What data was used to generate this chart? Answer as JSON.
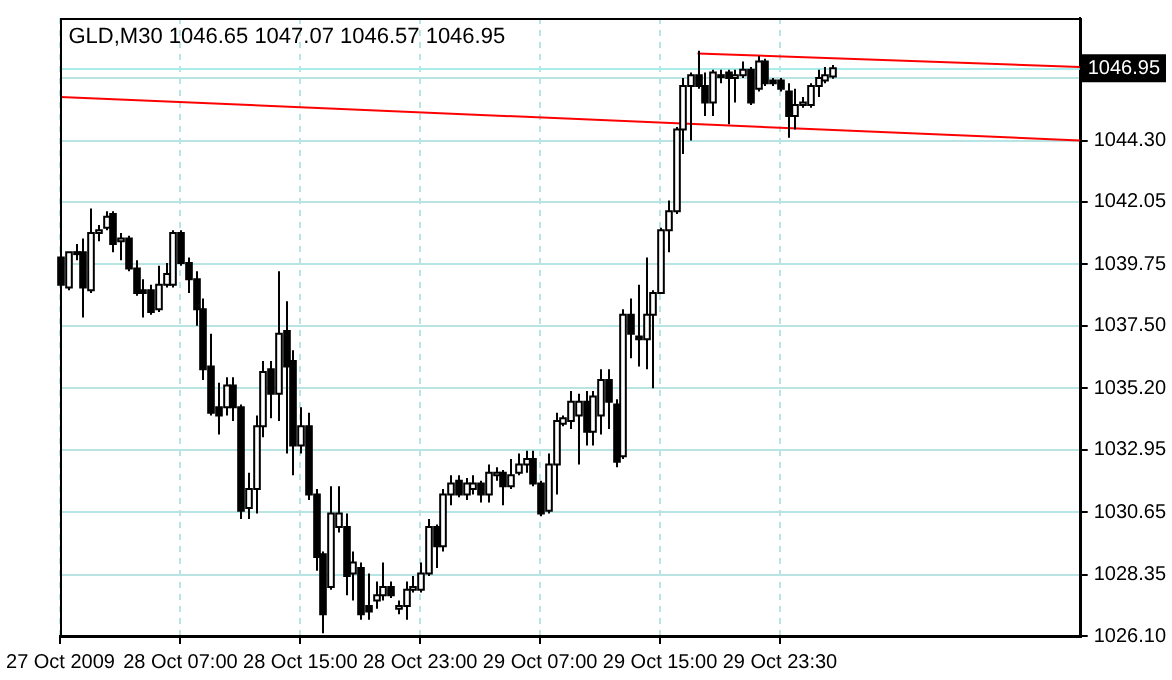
{
  "chart_data": {
    "type": "candlestick",
    "title": "GLD,M30 1046.65 1047.07 1046.57 1046.95",
    "categories": [
      "27 Oct 2009",
      null,
      null,
      null,
      null,
      null,
      null,
      null,
      null,
      null,
      null,
      null,
      null,
      null,
      null,
      null,
      "28 Oct 07:00",
      null,
      null,
      null,
      null,
      null,
      null,
      null,
      null,
      null,
      null,
      null,
      null,
      null,
      null,
      null,
      "28 Oct 15:00",
      null,
      null,
      null,
      null,
      null,
      null,
      null,
      null,
      null,
      null,
      null,
      null,
      null,
      null,
      null,
      "28 Oct 23:00",
      null,
      null,
      null,
      null,
      null,
      null,
      null,
      null,
      null,
      null,
      null,
      null,
      null,
      null,
      null,
      "29 Oct 07:00",
      null,
      null,
      null,
      null,
      null,
      null,
      null,
      null,
      null,
      null,
      null,
      null,
      null,
      null,
      null,
      "29 Oct 15:00",
      null,
      null,
      null,
      null,
      null,
      null,
      null,
      null,
      null,
      null,
      null,
      null,
      null,
      null,
      null,
      "29 Oct 23:30",
      null,
      null,
      null,
      null,
      null,
      null,
      null,
      null,
      null,
      null,
      null,
      null,
      null,
      null,
      null,
      null,
      null,
      null,
      null,
      null,
      null,
      null,
      null,
      null,
      null,
      null,
      null,
      null,
      null,
      null,
      null,
      null,
      null,
      null,
      null,
      null,
      null,
      null,
      null,
      null
    ],
    "ohlc": [
      [
        1040.0,
        1040.0,
        1038.9,
        1039.0
      ],
      [
        1038.9,
        1040.2,
        1038.8,
        1040.2
      ],
      [
        1040.2,
        1040.5,
        1039.9,
        1040.2
      ],
      [
        1040.2,
        1040.7,
        1037.8,
        1038.9
      ],
      [
        1038.8,
        1041.8,
        1038.7,
        1040.9
      ],
      [
        1040.9,
        1041.2,
        1040.6,
        1041.0
      ],
      [
        1041.1,
        1041.7,
        1041.0,
        1041.5
      ],
      [
        1041.6,
        1041.7,
        1040.2,
        1040.5
      ],
      [
        1040.6,
        1040.9,
        1039.9,
        1040.7
      ],
      [
        1040.7,
        1040.8,
        1039.5,
        1039.6
      ],
      [
        1039.6,
        1039.9,
        1038.6,
        1038.7
      ],
      [
        1038.8,
        1039.2,
        1037.8,
        1038.7
      ],
      [
        1038.8,
        1039.0,
        1037.9,
        1038.0
      ],
      [
        1038.1,
        1039.7,
        1038.0,
        1039.0
      ],
      [
        1039.0,
        1039.8,
        1038.9,
        1039.4
      ],
      [
        1039.0,
        1041.0,
        1038.9,
        1040.9
      ],
      [
        1040.9,
        1041.0,
        1039.7,
        1039.8
      ],
      [
        1039.8,
        1040.0,
        1038.7,
        1039.2
      ],
      [
        1039.2,
        1039.5,
        1037.5,
        1038.1
      ],
      [
        1038.1,
        1038.5,
        1035.5,
        1035.9
      ],
      [
        1036.0,
        1037.2,
        1034.2,
        1034.3
      ],
      [
        1034.5,
        1035.4,
        1033.5,
        1034.2
      ],
      [
        1034.5,
        1035.6,
        1034.2,
        1035.3
      ],
      [
        1035.3,
        1035.6,
        1034.0,
        1034.5
      ],
      [
        1034.5,
        1034.6,
        1030.4,
        1030.7
      ],
      [
        1030.8,
        1032.1,
        1030.4,
        1031.5
      ],
      [
        1031.5,
        1034.2,
        1030.6,
        1033.8
      ],
      [
        1033.8,
        1036.2,
        1033.4,
        1035.8
      ],
      [
        1035.9,
        1036.2,
        1034.1,
        1035.0
      ],
      [
        1035.0,
        1039.5,
        1034.0,
        1037.2
      ],
      [
        1037.3,
        1038.4,
        1032.8,
        1036.0
      ],
      [
        1036.2,
        1036.6,
        1032.0,
        1033.1
      ],
      [
        1033.1,
        1034.5,
        1032.8,
        1033.8
      ],
      [
        1033.8,
        1034.3,
        1031.1,
        1031.3
      ],
      [
        1031.3,
        1031.5,
        1028.5,
        1029.0
      ],
      [
        1029.1,
        1029.2,
        1026.2,
        1026.9
      ],
      [
        1027.9,
        1031.6,
        1027.8,
        1030.6
      ],
      [
        1030.1,
        1031.6,
        1029.9,
        1030.6
      ],
      [
        1030.1,
        1030.6,
        1027.6,
        1028.3
      ],
      [
        1028.4,
        1029.2,
        1027.4,
        1028.8
      ],
      [
        1028.6,
        1028.8,
        1026.7,
        1026.9
      ],
      [
        1027.2,
        1028.4,
        1026.7,
        1027.0
      ],
      [
        1027.4,
        1028.1,
        1027.1,
        1027.6
      ],
      [
        1027.6,
        1028.8,
        1027.4,
        1027.9
      ],
      [
        1027.9,
        1028.1,
        1027.5,
        1027.6
      ],
      [
        1027.1,
        1027.4,
        1026.9,
        1027.2
      ],
      [
        1027.2,
        1028.1,
        1026.7,
        1027.8
      ],
      [
        1027.8,
        1028.3,
        1027.7,
        1027.9
      ],
      [
        1027.8,
        1028.8,
        1027.7,
        1028.4
      ],
      [
        1028.4,
        1030.4,
        1028.3,
        1030.1
      ],
      [
        1030.1,
        1030.2,
        1028.6,
        1029.4
      ],
      [
        1029.4,
        1031.5,
        1029.2,
        1031.3
      ],
      [
        1031.3,
        1032.0,
        1030.9,
        1031.7
      ],
      [
        1031.8,
        1032.0,
        1031.2,
        1031.3
      ],
      [
        1031.3,
        1031.9,
        1031.1,
        1031.7
      ],
      [
        1031.5,
        1032.0,
        1031.3,
        1031.7
      ],
      [
        1031.7,
        1031.8,
        1031.0,
        1031.3
      ],
      [
        1031.3,
        1032.4,
        1031.0,
        1032.1
      ],
      [
        1032.0,
        1032.3,
        1031.8,
        1032.1
      ],
      [
        1032.1,
        1032.2,
        1030.9,
        1031.6
      ],
      [
        1031.6,
        1032.6,
        1031.5,
        1032.0
      ],
      [
        1032.1,
        1032.8,
        1032.0,
        1032.4
      ],
      [
        1032.4,
        1032.9,
        1032.1,
        1032.6
      ],
      [
        1032.6,
        1032.9,
        1031.6,
        1031.7
      ],
      [
        1031.7,
        1031.8,
        1030.5,
        1030.6
      ],
      [
        1030.7,
        1032.8,
        1030.6,
        1032.4
      ],
      [
        1032.4,
        1034.3,
        1031.3,
        1034.0
      ],
      [
        1033.9,
        1034.2,
        1033.8,
        1034.1
      ],
      [
        1034.0,
        1035.1,
        1033.7,
        1034.7
      ],
      [
        1034.2,
        1035.0,
        1032.4,
        1034.7
      ],
      [
        1034.7,
        1035.1,
        1033.1,
        1033.6
      ],
      [
        1033.6,
        1035.1,
        1033.1,
        1034.9
      ],
      [
        1034.2,
        1035.9,
        1033.5,
        1035.5
      ],
      [
        1035.5,
        1035.9,
        1033.7,
        1034.7
      ],
      [
        1034.6,
        1034.8,
        1032.3,
        1032.5
      ],
      [
        1032.7,
        1038.1,
        1032.6,
        1037.9
      ],
      [
        1037.9,
        1038.5,
        1036.3,
        1037.2
      ],
      [
        1037.1,
        1039.0,
        1036.0,
        1037.0
      ],
      [
        1037.0,
        1040.0,
        1035.9,
        1037.9
      ],
      [
        1037.9,
        1038.8,
        1035.2,
        1038.7
      ],
      [
        1038.7,
        1041.1,
        1038.7,
        1041.0
      ],
      [
        1041.0,
        1042.1,
        1040.2,
        1041.7
      ],
      [
        1041.7,
        1044.8,
        1041.6,
        1044.7
      ],
      [
        1044.7,
        1046.6,
        1043.8,
        1046.3
      ],
      [
        1046.3,
        1046.8,
        1044.3,
        1046.7
      ],
      [
        1046.7,
        1047.6,
        1046.2,
        1046.3
      ],
      [
        1046.3,
        1046.8,
        1045.2,
        1045.7
      ],
      [
        1045.7,
        1046.9,
        1045.2,
        1046.8
      ],
      [
        1046.7,
        1046.9,
        1046.4,
        1046.7
      ],
      [
        1046.8,
        1046.9,
        1044.9,
        1046.6
      ],
      [
        1046.6,
        1046.9,
        1045.7,
        1046.7
      ],
      [
        1046.7,
        1047.2,
        1046.6,
        1046.9
      ],
      [
        1046.9,
        1047.0,
        1045.6,
        1045.7
      ],
      [
        1046.2,
        1047.4,
        1046.1,
        1047.2
      ],
      [
        1047.2,
        1047.3,
        1046.3,
        1046.4
      ],
      [
        1046.5,
        1046.6,
        1046.3,
        1046.4
      ],
      [
        1046.5,
        1046.6,
        1046.1,
        1046.2
      ],
      [
        1046.1,
        1046.4,
        1044.4,
        1045.2
      ],
      [
        1045.2,
        1046.2,
        1044.7,
        1045.6
      ],
      [
        1045.6,
        1045.9,
        1045.5,
        1045.7
      ],
      [
        1045.6,
        1046.4,
        1045.5,
        1046.3
      ],
      [
        1046.3,
        1046.9,
        1045.9,
        1046.6
      ],
      [
        1046.5,
        1047.0,
        1046.4,
        1046.7
      ],
      [
        1046.65,
        1047.07,
        1046.57,
        1046.95
      ],
      null,
      null,
      null,
      null,
      null,
      null,
      null,
      null,
      null,
      null,
      null,
      null,
      null,
      null,
      null,
      null,
      null,
      null,
      null,
      null,
      null,
      null,
      null,
      null,
      null,
      null,
      null,
      null,
      null,
      null,
      null,
      null,
      null
    ],
    "series": [
      {
        "type": "line",
        "color": "#ff0000",
        "values": [
          1045.9,
          null,
          null,
          null,
          null,
          null,
          null,
          null,
          null,
          null,
          null,
          null,
          null,
          null,
          null,
          null,
          null,
          null,
          null,
          null,
          null,
          null,
          null,
          null,
          null,
          null,
          null,
          null,
          null,
          null,
          null,
          null,
          null,
          null,
          null,
          null,
          null,
          null,
          null,
          null,
          null,
          null,
          null,
          null,
          null,
          null,
          null,
          null,
          null,
          null,
          null,
          null,
          null,
          null,
          null,
          null,
          null,
          null,
          null,
          null,
          null,
          null,
          null,
          null,
          null,
          null,
          null,
          null,
          null,
          null,
          null,
          null,
          null,
          null,
          null,
          null,
          null,
          null,
          null,
          null,
          null,
          null,
          null,
          null,
          null,
          null,
          null,
          null,
          null,
          null,
          null,
          null,
          null,
          null,
          null,
          null,
          null,
          null,
          null,
          null,
          null,
          null,
          null,
          null,
          null,
          null,
          null,
          null,
          null,
          null,
          null,
          null,
          null,
          null,
          null,
          null,
          null,
          null,
          null,
          null,
          null,
          null,
          null,
          null,
          null,
          null,
          null,
          null,
          null,
          null,
          null,
          null,
          null,
          null,
          null,
          null,
          1044.3
        ]
      },
      {
        "type": "line",
        "color": "#ff0000",
        "values": [
          null,
          null,
          null,
          null,
          null,
          null,
          null,
          null,
          null,
          null,
          null,
          null,
          null,
          null,
          null,
          null,
          null,
          null,
          null,
          null,
          null,
          null,
          null,
          null,
          null,
          null,
          null,
          null,
          null,
          null,
          null,
          null,
          null,
          null,
          null,
          null,
          null,
          null,
          null,
          null,
          null,
          null,
          null,
          null,
          null,
          null,
          null,
          null,
          null,
          null,
          null,
          null,
          null,
          null,
          null,
          null,
          null,
          null,
          null,
          null,
          null,
          null,
          null,
          null,
          null,
          null,
          null,
          null,
          null,
          null,
          null,
          null,
          null,
          null,
          null,
          null,
          null,
          null,
          null,
          null,
          null,
          null,
          null,
          null,
          null,
          1047.5,
          null,
          null,
          null,
          null,
          null,
          null,
          null,
          null,
          null,
          null,
          null,
          null,
          null,
          null,
          null,
          null,
          null,
          null,
          null,
          null,
          null,
          null,
          null,
          null,
          null,
          null,
          null,
          null,
          null,
          null,
          null,
          null,
          null,
          null,
          null,
          null,
          null,
          null,
          null,
          null,
          null,
          null,
          null,
          null,
          null,
          null,
          null,
          null,
          null,
          null,
          1047.0
        ]
      }
    ],
    "ylim": [
      1026.1,
      1048.8
    ],
    "yticks": [
      {
        "value": 1026.1,
        "label": "1026.10"
      },
      1028.35,
      1030.65,
      1032.95,
      {
        "value": 1035.2,
        "label": "1035.20"
      },
      {
        "value": 1037.5,
        "label": "1037.50"
      },
      1039.75,
      1042.05,
      {
        "value": 1044.3,
        "label": "1044.30"
      },
      {
        "value": 1046.6,
        "label": null
      }
    ],
    "ref_lines": [
      {
        "axis": "y",
        "value": 1046.95,
        "label": "1046.95",
        "color": "#a8ecec"
      }
    ],
    "grid": true
  }
}
